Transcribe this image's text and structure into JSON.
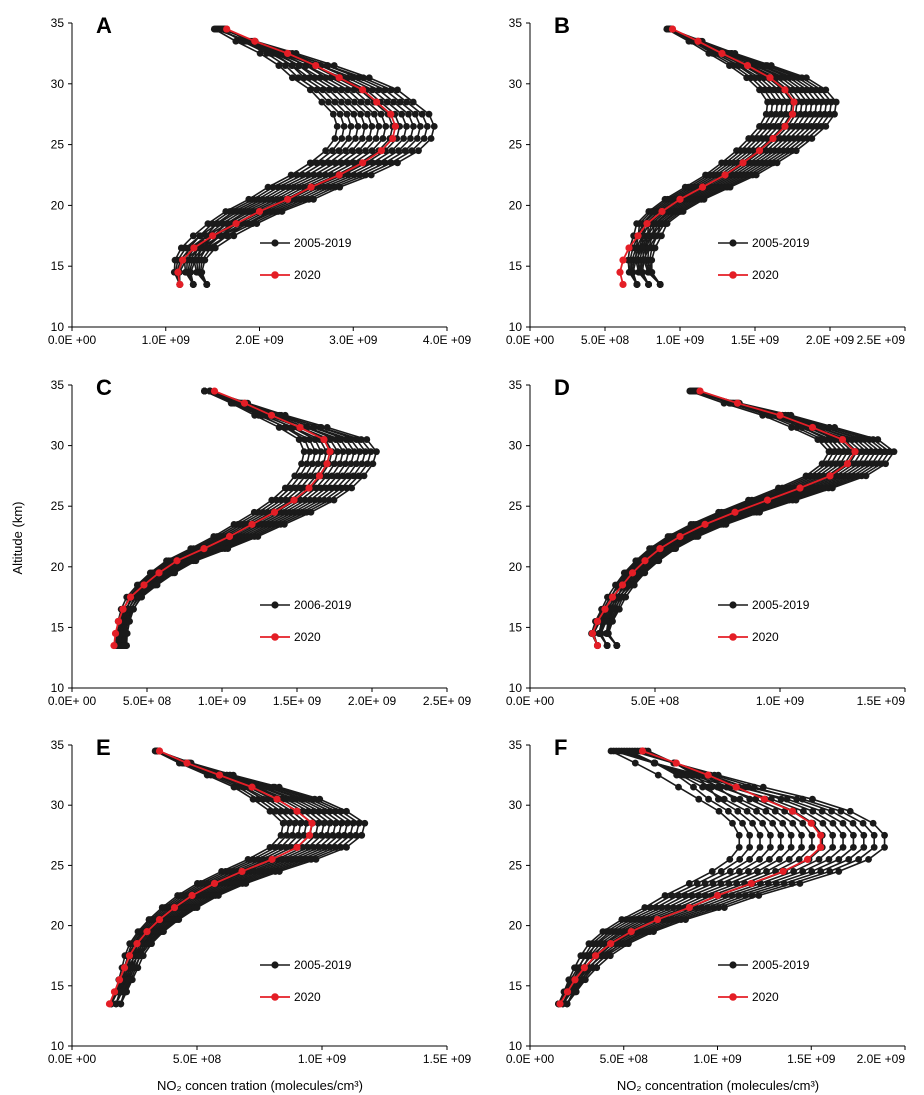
{
  "figure": {
    "ylabel": "Altitude (km)",
    "xlabel_left": "NO₂ concen tration (molecules/cm³)",
    "xlabel_right": "NO₂ concentration (molecules/cm³)"
  },
  "colors": {
    "historical": "#1a1a1a",
    "current": "#e41e26"
  },
  "chart_data": [
    {
      "type": "line",
      "panel": "A",
      "xlim": [
        0,
        4000000000
      ],
      "ylim": [
        10,
        35
      ],
      "xticks": [
        0,
        1000000000,
        2000000000,
        3000000000,
        4000000000
      ],
      "xtick_labels": [
        "0.0E +00",
        "1.0E +09",
        "2.0E +09",
        "3.0E +09",
        "4.0E +09"
      ],
      "yticks": [
        10,
        15,
        20,
        25,
        30,
        35
      ],
      "legend": [
        "2005-2019",
        "2020"
      ],
      "base_2020": {
        "alt": [
          13.5,
          14.5,
          15.5,
          16.5,
          17.5,
          18.5,
          19.5,
          20.5,
          21.5,
          22.5,
          23.5,
          24.5,
          25.5,
          26.5,
          27.5,
          28.5,
          29.5,
          30.5,
          31.5,
          32.5,
          33.5,
          34.5
        ],
        "conc": [
          1150000000,
          1130000000,
          1180000000,
          1300000000,
          1500000000,
          1750000000,
          2000000000,
          2300000000,
          2550000000,
          2850000000,
          3100000000,
          3300000000,
          3420000000,
          3450000000,
          3400000000,
          3250000000,
          3100000000,
          2850000000,
          2600000000,
          2300000000,
          1950000000,
          1650000000
        ]
      },
      "spread": {
        "count": 15,
        "scales": [
          0.82,
          1.12
        ],
        "top": [
          0.92,
          1.0
        ],
        "bottom": [
          1.0,
          1.35
        ]
      }
    },
    {
      "type": "line",
      "panel": "B",
      "xlim": [
        0,
        2500000000
      ],
      "ylim": [
        10,
        35
      ],
      "xticks": [
        0,
        500000000,
        1000000000,
        1500000000,
        2000000000,
        2500000000
      ],
      "xtick_labels": [
        "0.0E +00",
        "5.0E +08",
        "1.0E +09",
        "1.5E +09",
        "2.0E +09",
        "2.5E +09"
      ],
      "yticks": [
        10,
        15,
        20,
        25,
        30,
        35
      ],
      "legend": [
        "2005-2019",
        "2020"
      ],
      "base_2020": {
        "alt": [
          13.5,
          14.5,
          15.5,
          16.5,
          17.5,
          18.5,
          19.5,
          20.5,
          21.5,
          22.5,
          23.5,
          24.5,
          25.5,
          26.5,
          27.5,
          28.5,
          29.5,
          30.5,
          31.5,
          32.5,
          33.5,
          34.5
        ],
        "conc": [
          620000000,
          600000000,
          620000000,
          660000000,
          720000000,
          780000000,
          880000000,
          1000000000,
          1150000000,
          1300000000,
          1420000000,
          1530000000,
          1620000000,
          1700000000,
          1750000000,
          1760000000,
          1700000000,
          1600000000,
          1450000000,
          1280000000,
          1120000000,
          950000000
        ]
      },
      "spread": {
        "count": 15,
        "scales": [
          0.9,
          1.16
        ],
        "top": [
          0.96,
          1.0
        ],
        "bottom": [
          1.15,
          1.5
        ]
      }
    },
    {
      "type": "line",
      "panel": "C",
      "xlim": [
        0,
        2500000000
      ],
      "ylim": [
        10,
        35
      ],
      "xticks": [
        0,
        500000000,
        1000000000,
        1500000000,
        2000000000,
        2500000000
      ],
      "xtick_labels": [
        "0.0E+ 00",
        "5.0E+ 08",
        "1.0E+ 09",
        "1.5E+ 09",
        "2.0E+ 09",
        "2.5E+ 09"
      ],
      "yticks": [
        10,
        15,
        20,
        25,
        30,
        35
      ],
      "legend": [
        "2006-2019",
        "2020"
      ],
      "base_2020": {
        "alt": [
          13.5,
          14.5,
          15.5,
          16.5,
          17.5,
          18.5,
          19.5,
          20.5,
          21.5,
          22.5,
          23.5,
          24.5,
          25.5,
          26.5,
          27.5,
          28.5,
          29.5,
          30.5,
          31.5,
          32.5,
          33.5,
          34.5
        ],
        "conc": [
          280000000,
          290000000,
          310000000,
          340000000,
          390000000,
          480000000,
          580000000,
          700000000,
          880000000,
          1050000000,
          1200000000,
          1350000000,
          1480000000,
          1580000000,
          1650000000,
          1700000000,
          1720000000,
          1680000000,
          1520000000,
          1330000000,
          1150000000,
          950000000
        ]
      },
      "spread": {
        "count": 14,
        "scales": [
          0.9,
          1.18
        ],
        "top": [
          0.93,
          1.0
        ],
        "bottom": [
          1.05,
          1.3
        ]
      }
    },
    {
      "type": "line",
      "panel": "D",
      "xlim": [
        0,
        1500000000
      ],
      "ylim": [
        10,
        35
      ],
      "xticks": [
        0,
        500000000,
        1000000000,
        1500000000
      ],
      "xtick_labels": [
        "0.0E +00",
        "5.0E +08",
        "1.0E +09",
        "1.5E +09"
      ],
      "yticks": [
        10,
        15,
        20,
        25,
        30,
        35
      ],
      "legend": [
        "2005-2019",
        "2020"
      ],
      "base_2020": {
        "alt": [
          13.5,
          14.5,
          15.5,
          16.5,
          17.5,
          18.5,
          19.5,
          20.5,
          21.5,
          22.5,
          23.5,
          24.5,
          25.5,
          26.5,
          27.5,
          28.5,
          29.5,
          30.5,
          31.5,
          32.5,
          33.5,
          34.5
        ],
        "conc": [
          270000000,
          250000000,
          270000000,
          300000000,
          330000000,
          370000000,
          410000000,
          460000000,
          520000000,
          600000000,
          700000000,
          820000000,
          950000000,
          1080000000,
          1200000000,
          1270000000,
          1300000000,
          1250000000,
          1130000000,
          1000000000,
          830000000,
          680000000
        ]
      },
      "spread": {
        "count": 15,
        "scales": [
          0.92,
          1.12
        ],
        "top": [
          0.94,
          1.0
        ],
        "bottom": [
          1.0,
          1.4
        ]
      }
    },
    {
      "type": "line",
      "panel": "E",
      "xlim": [
        0,
        1500000000
      ],
      "ylim": [
        10,
        35
      ],
      "xticks": [
        0,
        500000000,
        1000000000,
        1500000000
      ],
      "xtick_labels": [
        "0.0E +00",
        "5.0E +08",
        "1.0E +09",
        "1.5E +09"
      ],
      "yticks": [
        10,
        15,
        20,
        25,
        30,
        35
      ],
      "legend": [
        "2005-2019",
        "2020"
      ],
      "base_2020": {
        "alt": [
          13.5,
          14.5,
          15.5,
          16.5,
          17.5,
          18.5,
          19.5,
          20.5,
          21.5,
          22.5,
          23.5,
          24.5,
          25.5,
          26.5,
          27.5,
          28.5,
          29.5,
          30.5,
          31.5,
          32.5,
          33.5,
          34.5
        ],
        "conc": [
          150000000,
          170000000,
          190000000,
          210000000,
          230000000,
          260000000,
          300000000,
          350000000,
          410000000,
          480000000,
          570000000,
          680000000,
          800000000,
          900000000,
          950000000,
          960000000,
          900000000,
          820000000,
          720000000,
          590000000,
          460000000,
          350000000
        ]
      },
      "spread": {
        "count": 15,
        "scales": [
          0.88,
          1.22
        ],
        "top": [
          0.95,
          1.0
        ],
        "bottom": [
          1.05,
          1.4
        ]
      }
    },
    {
      "type": "line",
      "panel": "F",
      "xlim": [
        0,
        2000000000
      ],
      "ylim": [
        10,
        35
      ],
      "xticks": [
        0,
        500000000,
        1000000000,
        1500000000,
        2000000000
      ],
      "xtick_labels": [
        "0.0E +00",
        "5.0E +08",
        "1.0E +09",
        "1.5E +09",
        "2.0E +09"
      ],
      "yticks": [
        10,
        15,
        20,
        25,
        30,
        35
      ],
      "legend": [
        "2005-2019",
        "2020"
      ],
      "base_2020": {
        "alt": [
          13.5,
          14.5,
          15.5,
          16.5,
          17.5,
          18.5,
          19.5,
          20.5,
          21.5,
          22.5,
          23.5,
          24.5,
          25.5,
          26.5,
          27.5,
          28.5,
          29.5,
          30.5,
          31.5,
          32.5,
          33.5,
          34.5
        ],
        "conc": [
          160000000,
          200000000,
          240000000,
          290000000,
          350000000,
          430000000,
          540000000,
          680000000,
          850000000,
          1000000000,
          1180000000,
          1350000000,
          1480000000,
          1550000000,
          1550000000,
          1500000000,
          1400000000,
          1250000000,
          1100000000,
          950000000,
          780000000,
          600000000
        ]
      },
      "spread": {
        "count": 15,
        "scales": [
          0.72,
          1.22
        ],
        "top": [
          0.72,
          1.05
        ],
        "bottom": [
          0.95,
          1.35
        ]
      }
    }
  ]
}
